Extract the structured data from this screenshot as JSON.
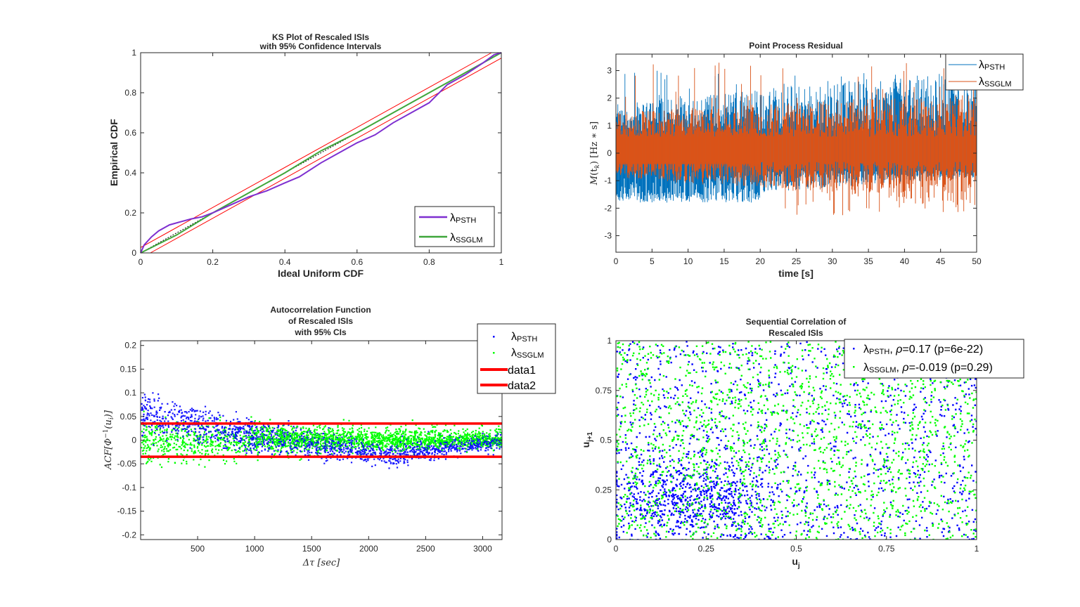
{
  "chart_data": [
    {
      "id": "ks",
      "type": "line",
      "title": [
        "KS Plot of Rescaled ISIs",
        "with 95% Confidence Intervals"
      ],
      "xlabel": "Ideal Uniform CDF",
      "ylabel": "Empirical CDF",
      "xlim": [
        0,
        1
      ],
      "ylim": [
        0,
        1
      ],
      "xticks": [
        0,
        0.2,
        0.4,
        0.6,
        0.8,
        1
      ],
      "xtick_labels": [
        "0",
        "0.2",
        "0.4",
        "0.6",
        "0.8",
        "1"
      ],
      "yticks": [
        0,
        0.2,
        0.4,
        0.6,
        0.8,
        1
      ],
      "ytick_labels": [
        "0",
        "0.2",
        "0.4",
        "0.6",
        "0.8",
        "1"
      ],
      "legend_position": "bottom-right",
      "confidence_band_offset": 0.027,
      "series": [
        {
          "name": "λ",
          "sub": "PSTH",
          "color": "#7e2fd0",
          "x": [
            0,
            0.01,
            0.03,
            0.05,
            0.08,
            0.11,
            0.14,
            0.17,
            0.2,
            0.25,
            0.3,
            0.35,
            0.4,
            0.44,
            0.5,
            0.55,
            0.6,
            0.65,
            0.7,
            0.75,
            0.8,
            0.85,
            0.9,
            0.95,
            0.98,
            1
          ],
          "y": [
            0,
            0.04,
            0.08,
            0.11,
            0.14,
            0.155,
            0.17,
            0.18,
            0.2,
            0.24,
            0.28,
            0.31,
            0.35,
            0.38,
            0.45,
            0.5,
            0.55,
            0.59,
            0.65,
            0.7,
            0.75,
            0.84,
            0.89,
            0.95,
            0.99,
            1
          ]
        },
        {
          "name": "λ",
          "sub": "SSGLM",
          "color": "#3fa63a",
          "x": [
            0,
            0.1,
            0.2,
            0.3,
            0.4,
            0.5,
            0.6,
            0.7,
            0.8,
            0.9,
            1
          ],
          "y": [
            0,
            0.09,
            0.2,
            0.3,
            0.4,
            0.51,
            0.6,
            0.7,
            0.8,
            0.9,
            1
          ]
        }
      ]
    },
    {
      "id": "residual",
      "type": "line",
      "title": [
        "Point Process Residual"
      ],
      "xlabel": "time [s]",
      "ylabel": "M(t_k) [Hz * s]",
      "xlim": [
        0,
        50
      ],
      "ylim": [
        -3.6,
        3.6
      ],
      "xticks": [
        0,
        5,
        10,
        15,
        20,
        25,
        30,
        35,
        40,
        45,
        50
      ],
      "xtick_labels": [
        "0",
        "5",
        "10",
        "15",
        "20",
        "25",
        "30",
        "35",
        "40",
        "45",
        "50"
      ],
      "yticks": [
        -3,
        -2,
        -1,
        0,
        1,
        2,
        3
      ],
      "ytick_labels": [
        "-3",
        "-2",
        "-1",
        "0",
        "1",
        "2",
        "3"
      ],
      "legend_position": "top-right",
      "series": [
        {
          "name": "λ",
          "sub": "PSTH",
          "color": "#0072bd",
          "peak_range": [
            1.7,
            3.0
          ],
          "trough_range": [
            -1.8,
            -0.8
          ]
        },
        {
          "name": "λ",
          "sub": "SSGLM",
          "color": "#d95319",
          "peak_range": [
            1.4,
            3.3
          ],
          "trough_range": [
            -2.3,
            -0.5
          ]
        }
      ]
    },
    {
      "id": "acf",
      "type": "scatter",
      "title": [
        "Autocorrelation Function",
        "of Rescaled ISIs",
        "with 95% CIs"
      ],
      "xlabel": "Δτ [sec]",
      "ylabel": "ACF[Φ⁻¹(uᵢ)]",
      "xlim": [
        0,
        3170
      ],
      "ylim": [
        -0.21,
        0.21
      ],
      "xticks": [
        500,
        1000,
        1500,
        2000,
        2500,
        3000
      ],
      "xtick_labels": [
        "500",
        "1000",
        "1500",
        "2000",
        "2500",
        "3000"
      ],
      "yticks": [
        -0.2,
        -0.15,
        -0.1,
        -0.05,
        0,
        0.05,
        0.1,
        0.15,
        0.2
      ],
      "ytick_labels": [
        "-0.2",
        "-0.15",
        "-0.1",
        "-0.05",
        "0",
        "0.05",
        "0.1",
        "0.15",
        "0.2"
      ],
      "legend_position": "top-right-outside",
      "series": [
        {
          "name": "λ",
          "sub": "PSTH",
          "color": "#0000ff",
          "trend": "starts ~0.06 decays to ~-0.03 near 2000-2500 then 0 at 3170"
        },
        {
          "name": "λ",
          "sub": "SSGLM",
          "color": "#00ff00",
          "trend": "centered ~0, spread narrows toward 3170"
        },
        {
          "name": "data1",
          "color": "#ff0000",
          "y": 0.035
        },
        {
          "name": "data2",
          "color": "#ff0000",
          "y": -0.035
        }
      ]
    },
    {
      "id": "seq",
      "type": "scatter",
      "title": [
        "Sequential Correlation of",
        "Rescaled ISIs"
      ],
      "xlabel": "u_j",
      "ylabel": "u_j+1",
      "xlim": [
        0,
        1
      ],
      "ylim": [
        0,
        1
      ],
      "xticks": [
        0,
        0.25,
        0.5,
        0.75,
        1
      ],
      "xtick_labels": [
        "0",
        "0.25",
        "0.5",
        "0.75",
        "1"
      ],
      "yticks": [
        0,
        0.25,
        0.5,
        0.75,
        1
      ],
      "ytick_labels": [
        "0",
        "0.25",
        "0.5",
        "0.75",
        "1"
      ],
      "legend_position": "top-right",
      "series": [
        {
          "name": "λ",
          "sub": "PSTH",
          "suffix": ", ρ=0.17 (p=6e-22)",
          "rho": 0.17,
          "p": "6e-22",
          "color": "#0000ff"
        },
        {
          "name": "λ",
          "sub": "SSGLM",
          "suffix": ", ρ=-0.019 (p=0.29)",
          "rho": -0.019,
          "p": "0.29",
          "color": "#00ff00"
        }
      ]
    }
  ],
  "labels": {
    "ks_t1": "KS Plot of Rescaled ISIs",
    "ks_t2": "with 95% Confidence Intervals",
    "ks_x": "Ideal Uniform CDF",
    "ks_y": "Empirical CDF",
    "res_t": "Point Process Residual",
    "res_x": "time [s]",
    "res_y_M": "M",
    "res_y_t": "(t",
    "res_y_k": "k",
    "res_y_rest": ") [Hz ∗ s]",
    "acf_t1": "Autocorrelation Function",
    "acf_t2": "of Rescaled ISIs",
    "acf_t3": "with 95% CIs",
    "acf_x": "Δτ [sec]",
    "acf_y_a": "ACF[Φ",
    "acf_y_sup": "−1",
    "acf_y_b": "(u",
    "acf_y_i": "i",
    "acf_y_c": ")]",
    "seq_t1": "Sequential Correlation of",
    "seq_t2": "Rescaled ISIs",
    "seq_x": "u",
    "seq_x_sub": "j",
    "seq_y": "u",
    "seq_y_sub": "j+1",
    "lam": "λ",
    "psth": "PSTH",
    "ssglm": "SSGLM",
    "data1": "data1",
    "data2": "data2",
    "seq_psth_suffix_a": ", ",
    "rho": "ρ",
    "seq_psth_suffix_b": "=0.17 (p=6e-22)",
    "seq_ssglm_suffix_b": "=-0.019 (p=0.29)"
  }
}
